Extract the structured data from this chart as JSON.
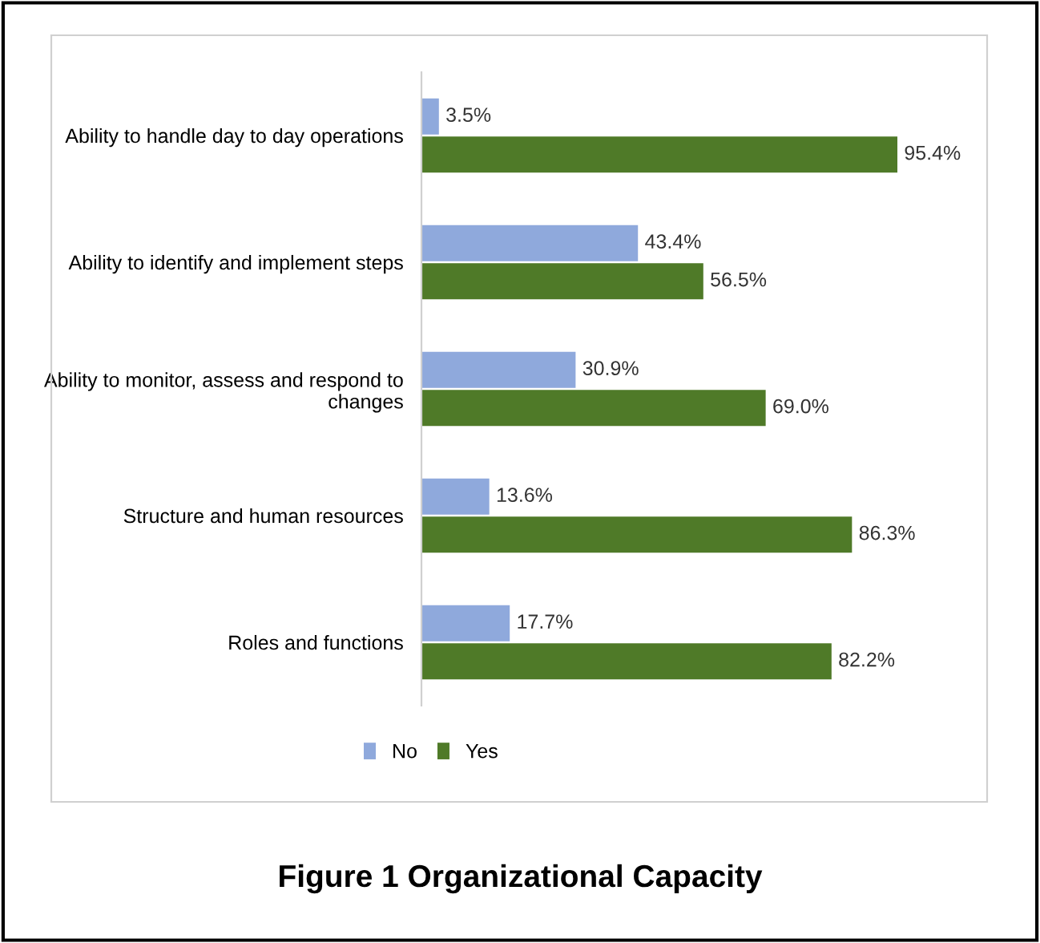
{
  "chart_data": {
    "type": "bar",
    "orientation": "horizontal",
    "title": "Figure 1 Organizational Capacity",
    "categories": [
      "Ability to handle day to day operations",
      "Ability to identify and implement steps",
      "Ability to monitor, assess and respond to\nchanges",
      "Structure and human resources",
      "Roles and functions"
    ],
    "series": [
      {
        "name": "No",
        "color": "#8fa9dc",
        "values": [
          3.5,
          43.4,
          30.9,
          13.6,
          17.7
        ],
        "value_labels": [
          "3.5%",
          "43.4%",
          "30.9%",
          "13.6%",
          "17.7%"
        ]
      },
      {
        "name": "Yes",
        "color": "#4f7a28",
        "values": [
          95.4,
          56.5,
          69.0,
          86.3,
          82.2
        ],
        "value_labels": [
          "95.4%",
          "56.5%",
          "69.0%",
          "86.3%",
          "82.2%"
        ]
      }
    ],
    "legend": "bottom",
    "grid": false
  }
}
